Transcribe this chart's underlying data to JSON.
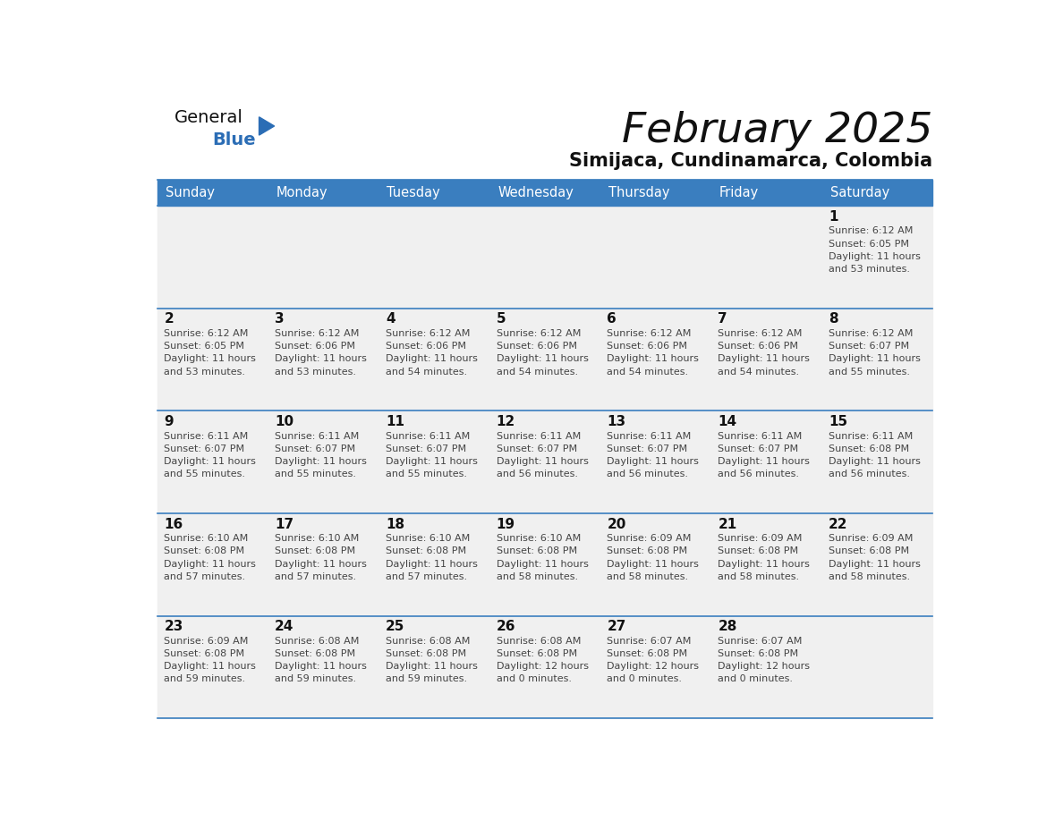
{
  "title": "February 2025",
  "subtitle": "Simijaca, Cundinamarca, Colombia",
  "days_of_week": [
    "Sunday",
    "Monday",
    "Tuesday",
    "Wednesday",
    "Thursday",
    "Friday",
    "Saturday"
  ],
  "header_bg": "#3a7ebf",
  "header_text": "#ffffff",
  "cell_bg": "#f0f0f0",
  "separator_color": "#3a7ebf",
  "text_color": "#444444",
  "date_color": "#111111",
  "logo_general_color": "#111111",
  "logo_blue_color": "#2b6db5",
  "calendar_data": [
    [
      null,
      null,
      null,
      null,
      null,
      null,
      {
        "day": 1,
        "sunrise": "6:12 AM",
        "sunset": "6:05 PM",
        "daylight_line1": "Daylight: 11 hours",
        "daylight_line2": "and 53 minutes."
      }
    ],
    [
      {
        "day": 2,
        "sunrise": "6:12 AM",
        "sunset": "6:05 PM",
        "daylight_line1": "Daylight: 11 hours",
        "daylight_line2": "and 53 minutes."
      },
      {
        "day": 3,
        "sunrise": "6:12 AM",
        "sunset": "6:06 PM",
        "daylight_line1": "Daylight: 11 hours",
        "daylight_line2": "and 53 minutes."
      },
      {
        "day": 4,
        "sunrise": "6:12 AM",
        "sunset": "6:06 PM",
        "daylight_line1": "Daylight: 11 hours",
        "daylight_line2": "and 54 minutes."
      },
      {
        "day": 5,
        "sunrise": "6:12 AM",
        "sunset": "6:06 PM",
        "daylight_line1": "Daylight: 11 hours",
        "daylight_line2": "and 54 minutes."
      },
      {
        "day": 6,
        "sunrise": "6:12 AM",
        "sunset": "6:06 PM",
        "daylight_line1": "Daylight: 11 hours",
        "daylight_line2": "and 54 minutes."
      },
      {
        "day": 7,
        "sunrise": "6:12 AM",
        "sunset": "6:06 PM",
        "daylight_line1": "Daylight: 11 hours",
        "daylight_line2": "and 54 minutes."
      },
      {
        "day": 8,
        "sunrise": "6:12 AM",
        "sunset": "6:07 PM",
        "daylight_line1": "Daylight: 11 hours",
        "daylight_line2": "and 55 minutes."
      }
    ],
    [
      {
        "day": 9,
        "sunrise": "6:11 AM",
        "sunset": "6:07 PM",
        "daylight_line1": "Daylight: 11 hours",
        "daylight_line2": "and 55 minutes."
      },
      {
        "day": 10,
        "sunrise": "6:11 AM",
        "sunset": "6:07 PM",
        "daylight_line1": "Daylight: 11 hours",
        "daylight_line2": "and 55 minutes."
      },
      {
        "day": 11,
        "sunrise": "6:11 AM",
        "sunset": "6:07 PM",
        "daylight_line1": "Daylight: 11 hours",
        "daylight_line2": "and 55 minutes."
      },
      {
        "day": 12,
        "sunrise": "6:11 AM",
        "sunset": "6:07 PM",
        "daylight_line1": "Daylight: 11 hours",
        "daylight_line2": "and 56 minutes."
      },
      {
        "day": 13,
        "sunrise": "6:11 AM",
        "sunset": "6:07 PM",
        "daylight_line1": "Daylight: 11 hours",
        "daylight_line2": "and 56 minutes."
      },
      {
        "day": 14,
        "sunrise": "6:11 AM",
        "sunset": "6:07 PM",
        "daylight_line1": "Daylight: 11 hours",
        "daylight_line2": "and 56 minutes."
      },
      {
        "day": 15,
        "sunrise": "6:11 AM",
        "sunset": "6:08 PM",
        "daylight_line1": "Daylight: 11 hours",
        "daylight_line2": "and 56 minutes."
      }
    ],
    [
      {
        "day": 16,
        "sunrise": "6:10 AM",
        "sunset": "6:08 PM",
        "daylight_line1": "Daylight: 11 hours",
        "daylight_line2": "and 57 minutes."
      },
      {
        "day": 17,
        "sunrise": "6:10 AM",
        "sunset": "6:08 PM",
        "daylight_line1": "Daylight: 11 hours",
        "daylight_line2": "and 57 minutes."
      },
      {
        "day": 18,
        "sunrise": "6:10 AM",
        "sunset": "6:08 PM",
        "daylight_line1": "Daylight: 11 hours",
        "daylight_line2": "and 57 minutes."
      },
      {
        "day": 19,
        "sunrise": "6:10 AM",
        "sunset": "6:08 PM",
        "daylight_line1": "Daylight: 11 hours",
        "daylight_line2": "and 58 minutes."
      },
      {
        "day": 20,
        "sunrise": "6:09 AM",
        "sunset": "6:08 PM",
        "daylight_line1": "Daylight: 11 hours",
        "daylight_line2": "and 58 minutes."
      },
      {
        "day": 21,
        "sunrise": "6:09 AM",
        "sunset": "6:08 PM",
        "daylight_line1": "Daylight: 11 hours",
        "daylight_line2": "and 58 minutes."
      },
      {
        "day": 22,
        "sunrise": "6:09 AM",
        "sunset": "6:08 PM",
        "daylight_line1": "Daylight: 11 hours",
        "daylight_line2": "and 58 minutes."
      }
    ],
    [
      {
        "day": 23,
        "sunrise": "6:09 AM",
        "sunset": "6:08 PM",
        "daylight_line1": "Daylight: 11 hours",
        "daylight_line2": "and 59 minutes."
      },
      {
        "day": 24,
        "sunrise": "6:08 AM",
        "sunset": "6:08 PM",
        "daylight_line1": "Daylight: 11 hours",
        "daylight_line2": "and 59 minutes."
      },
      {
        "day": 25,
        "sunrise": "6:08 AM",
        "sunset": "6:08 PM",
        "daylight_line1": "Daylight: 11 hours",
        "daylight_line2": "and 59 minutes."
      },
      {
        "day": 26,
        "sunrise": "6:08 AM",
        "sunset": "6:08 PM",
        "daylight_line1": "Daylight: 12 hours",
        "daylight_line2": "and 0 minutes."
      },
      {
        "day": 27,
        "sunrise": "6:07 AM",
        "sunset": "6:08 PM",
        "daylight_line1": "Daylight: 12 hours",
        "daylight_line2": "and 0 minutes."
      },
      {
        "day": 28,
        "sunrise": "6:07 AM",
        "sunset": "6:08 PM",
        "daylight_line1": "Daylight: 12 hours",
        "daylight_line2": "and 0 minutes."
      },
      null
    ]
  ]
}
